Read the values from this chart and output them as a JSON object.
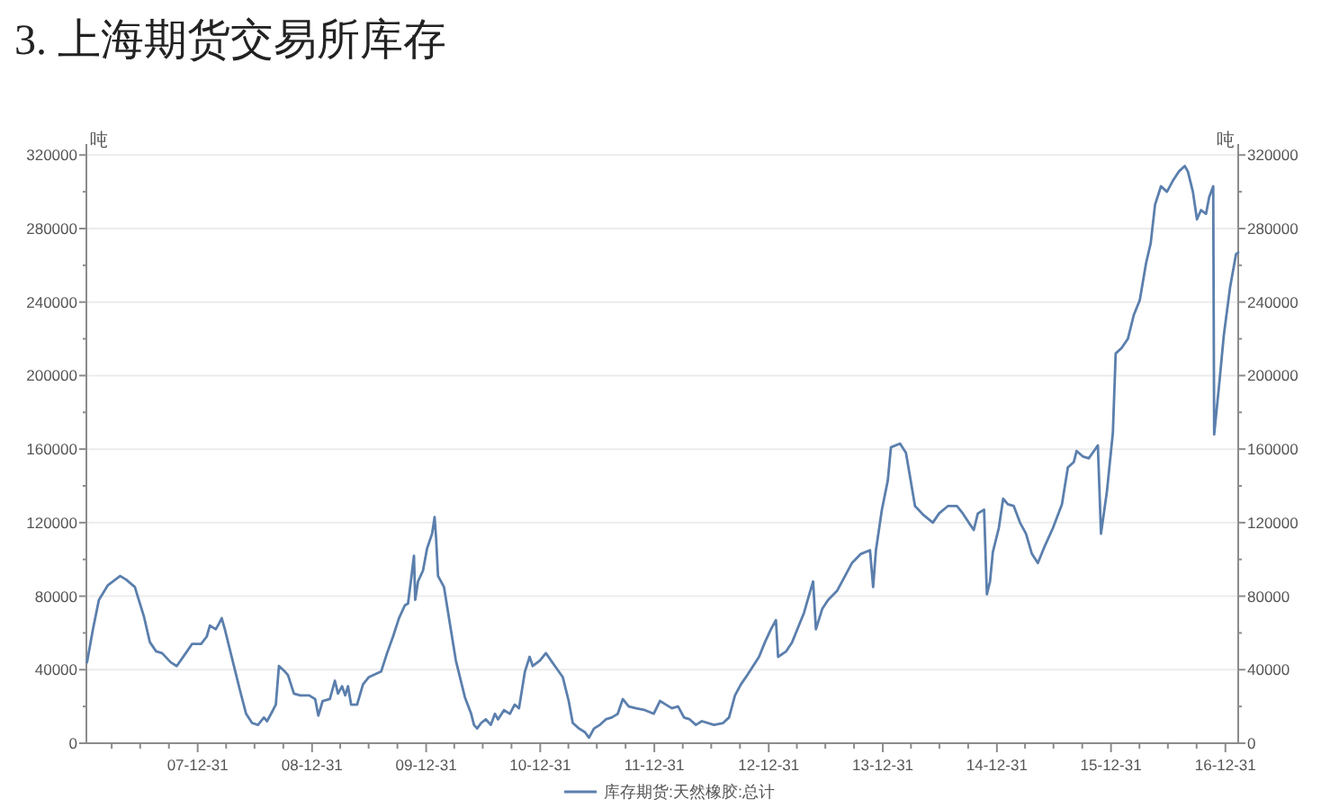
{
  "chart_data": {
    "type": "line",
    "title": "3. 上海期货交易所库存",
    "ylabel": "吨",
    "y2label": "吨",
    "xlim": [
      "2007-01-09",
      "2017-02-10"
    ],
    "xticks": [
      {
        "value": "2007-03-31",
        "label": null
      },
      {
        "value": "2007-06-30",
        "label": null
      },
      {
        "value": "2007-09-30",
        "label": null
      },
      {
        "value": "2007-12-31",
        "label": "07-12-31"
      },
      {
        "value": "2008-03-31",
        "label": null
      },
      {
        "value": "2008-06-30",
        "label": null
      },
      {
        "value": "2008-09-30",
        "label": null
      },
      {
        "value": "2008-12-31",
        "label": "08-12-31"
      },
      {
        "value": "2009-03-31",
        "label": null
      },
      {
        "value": "2009-06-30",
        "label": null
      },
      {
        "value": "2009-09-30",
        "label": null
      },
      {
        "value": "2009-12-31",
        "label": "09-12-31"
      },
      {
        "value": "2010-03-31",
        "label": null
      },
      {
        "value": "2010-06-30",
        "label": null
      },
      {
        "value": "2010-09-30",
        "label": null
      },
      {
        "value": "2010-12-31",
        "label": "10-12-31"
      },
      {
        "value": "2011-03-31",
        "label": null
      },
      {
        "value": "2011-06-30",
        "label": null
      },
      {
        "value": "2011-09-30",
        "label": null
      },
      {
        "value": "2011-12-31",
        "label": "11-12-31"
      },
      {
        "value": "2012-03-31",
        "label": null
      },
      {
        "value": "2012-06-30",
        "label": null
      },
      {
        "value": "2012-09-30",
        "label": null
      },
      {
        "value": "2012-12-31",
        "label": "12-12-31"
      },
      {
        "value": "2013-03-31",
        "label": null
      },
      {
        "value": "2013-06-30",
        "label": null
      },
      {
        "value": "2013-09-30",
        "label": null
      },
      {
        "value": "2013-12-31",
        "label": "13-12-31"
      },
      {
        "value": "2014-03-31",
        "label": null
      },
      {
        "value": "2014-06-30",
        "label": null
      },
      {
        "value": "2014-09-30",
        "label": null
      },
      {
        "value": "2014-12-31",
        "label": "14-12-31"
      },
      {
        "value": "2015-03-31",
        "label": null
      },
      {
        "value": "2015-06-30",
        "label": null
      },
      {
        "value": "2015-09-30",
        "label": null
      },
      {
        "value": "2015-12-31",
        "label": "15-12-31"
      },
      {
        "value": "2016-03-31",
        "label": null
      },
      {
        "value": "2016-06-30",
        "label": null
      },
      {
        "value": "2016-09-30",
        "label": null
      },
      {
        "value": "2016-12-31",
        "label": "16-12-31"
      }
    ],
    "ylim": [
      0,
      326000
    ],
    "yticks": [
      0,
      {
        "value": 20000,
        "label": null
      },
      40000,
      {
        "value": 60000,
        "label": null
      },
      80000,
      {
        "value": 100000,
        "label": null
      },
      120000,
      {
        "value": 140000,
        "label": null
      },
      160000,
      {
        "value": 180000,
        "label": null
      },
      200000,
      {
        "value": 220000,
        "label": null
      },
      240000,
      {
        "value": 260000,
        "label": null
      },
      280000,
      {
        "value": 300000,
        "label": null
      },
      320000
    ],
    "y2lim": [
      0,
      326000
    ],
    "y2ticks": [
      0,
      {
        "value": 20000,
        "label": null
      },
      40000,
      {
        "value": 60000,
        "label": null
      },
      80000,
      {
        "value": 100000,
        "label": null
      },
      120000,
      {
        "value": 140000,
        "label": null
      },
      160000,
      {
        "value": 180000,
        "label": null
      },
      200000,
      {
        "value": 220000,
        "label": null
      },
      240000,
      {
        "value": 260000,
        "label": null
      },
      280000,
      {
        "value": 300000,
        "label": null
      },
      320000
    ],
    "grid": "y",
    "legend": "bottom",
    "x": [
      "2007-01-11",
      "2007-01-30",
      "2007-02-18",
      "2007-03-19",
      "2007-04-27",
      "2007-05-16",
      "2007-06-13",
      "2007-07-12",
      "2007-07-31",
      "2007-08-20",
      "2007-09-08",
      "2007-10-06",
      "2007-10-25",
      "2007-11-23",
      "2007-12-13",
      "2008-01-11",
      "2008-01-29",
      "2008-02-08",
      "2008-02-27",
      "2008-03-08",
      "2008-03-17",
      "2008-03-27",
      "2008-04-25",
      "2008-05-14",
      "2008-06-03",
      "2008-06-22",
      "2008-07-11",
      "2008-07-30",
      "2008-08-09",
      "2008-08-28",
      "2008-09-06",
      "2008-09-16",
      "2008-10-05",
      "2008-10-15",
      "2008-11-03",
      "2008-11-23",
      "2008-12-22",
      "2009-01-10",
      "2009-01-20",
      "2009-02-03",
      "2009-02-26",
      "2009-03-14",
      "2009-03-24",
      "2009-04-06",
      "2009-04-16",
      "2009-04-25",
      "2009-05-05",
      "2009-05-24",
      "2009-06-12",
      "2009-07-01",
      "2009-08-09",
      "2009-08-28",
      "2009-09-16",
      "2009-10-05",
      "2009-10-24",
      "2009-11-03",
      "2009-11-12",
      "2009-11-22",
      "2009-11-26",
      "2009-12-05",
      "2009-12-21",
      "2010-01-03",
      "2010-01-19",
      "2010-01-27",
      "2010-02-01",
      "2010-02-07",
      "2010-02-26",
      "2010-03-17",
      "2010-04-05",
      "2010-05-04",
      "2010-05-24",
      "2010-06-02",
      "2010-06-12",
      "2010-06-25",
      "2010-07-10",
      "2010-07-26",
      "2010-08-08",
      "2010-08-18",
      "2010-09-06",
      "2010-09-25",
      "2010-10-10",
      "2010-10-24",
      "2010-11-12",
      "2010-11-27",
      "2010-12-07",
      "2010-12-30",
      "2011-01-18",
      "2011-02-16",
      "2011-03-13",
      "2011-04-01",
      "2011-04-14",
      "2011-05-04",
      "2011-05-23",
      "2011-06-05",
      "2011-06-21",
      "2011-07-10",
      "2011-07-29",
      "2011-08-17",
      "2011-09-05",
      "2011-09-21",
      "2011-10-10",
      "2011-11-02",
      "2011-12-01",
      "2011-12-29",
      "2012-01-18",
      "2012-02-06",
      "2012-02-25",
      "2012-03-16",
      "2012-04-04",
      "2012-04-22",
      "2012-05-12",
      "2012-05-31",
      "2012-07-09",
      "2012-08-07",
      "2012-08-26",
      "2012-09-14",
      "2012-10-03",
      "2012-10-23",
      "2012-11-11",
      "2012-11-30",
      "2012-12-19",
      "2013-01-07",
      "2013-01-23",
      "2013-01-30",
      "2013-02-25",
      "2013-03-16",
      "2013-04-04",
      "2013-04-23",
      "2013-05-08",
      "2013-05-22",
      "2013-05-31",
      "2013-06-20",
      "2013-07-09",
      "2013-08-07",
      "2013-08-26",
      "2013-09-23",
      "2013-10-22",
      "2013-11-20",
      "2013-11-30",
      "2013-12-09",
      "2013-12-28",
      "2014-01-16",
      "2014-01-26",
      "2014-02-24",
      "2014-03-15",
      "2014-03-30",
      "2014-04-13",
      "2014-05-11",
      "2014-06-09",
      "2014-06-29",
      "2014-07-27",
      "2014-08-25",
      "2014-09-13",
      "2014-10-02",
      "2014-10-18",
      "2014-10-31",
      "2014-11-20",
      "2014-11-29",
      "2014-12-09",
      "2014-12-18",
      "2015-01-06",
      "2015-01-20",
      "2015-02-04",
      "2015-02-23",
      "2015-03-15",
      "2015-04-03",
      "2015-04-22",
      "2015-05-11",
      "2015-05-30",
      "2015-06-28",
      "2015-07-27",
      "2015-08-15",
      "2015-09-03",
      "2015-09-12",
      "2015-10-02",
      "2015-10-21",
      "2015-11-19",
      "2015-11-29",
      "2015-12-18",
      "2016-01-06",
      "2016-01-15",
      "2016-02-03",
      "2016-02-23",
      "2016-03-13",
      "2016-04-01",
      "2016-04-21",
      "2016-05-06",
      "2016-05-20",
      "2016-06-08",
      "2016-06-27",
      "2016-07-16",
      "2016-08-04",
      "2016-08-23",
      "2016-09-02",
      "2016-09-18",
      "2016-10-01",
      "2016-10-14",
      "2016-10-30",
      "2016-11-09",
      "2016-11-22",
      "2016-11-25",
      "2016-12-11",
      "2016-12-26",
      "2017-01-15",
      "2017-02-03",
      "2017-02-10"
    ],
    "series": [
      {
        "name": "库存期货:天然橡胶:总计",
        "color": "#5b7fad",
        "values": [
          44000,
          62000,
          78000,
          86000,
          91000,
          89000,
          85000,
          69000,
          55000,
          50000,
          49000,
          44000,
          42000,
          49000,
          54000,
          54000,
          58000,
          64000,
          62000,
          65000,
          68000,
          62000,
          42000,
          29000,
          16000,
          11000,
          10000,
          14000,
          12000,
          18000,
          21000,
          42000,
          39000,
          37000,
          27000,
          26000,
          26000,
          24000,
          15000,
          23000,
          24000,
          34000,
          27000,
          31000,
          26000,
          31000,
          21000,
          21000,
          32000,
          36000,
          39000,
          49000,
          58000,
          68000,
          75000,
          76000,
          88000,
          102000,
          78000,
          88000,
          94000,
          106000,
          114000,
          123000,
          111000,
          91000,
          85000,
          65000,
          45000,
          25000,
          16000,
          10000,
          8000,
          11000,
          13000,
          10000,
          16000,
          13000,
          18000,
          16000,
          21000,
          19000,
          39000,
          47000,
          42000,
          45000,
          49000,
          42000,
          36000,
          23000,
          11000,
          8000,
          6000,
          3000,
          8000,
          10000,
          13000,
          14000,
          16000,
          24000,
          20000,
          19000,
          18000,
          16000,
          23000,
          21000,
          19000,
          20000,
          14000,
          13000,
          10000,
          12000,
          10000,
          11000,
          14000,
          26000,
          32000,
          37000,
          42000,
          47000,
          55000,
          62000,
          67000,
          47000,
          50000,
          55000,
          63000,
          71000,
          80000,
          88000,
          62000,
          73000,
          78000,
          83000,
          89000,
          98000,
          103000,
          105000,
          85000,
          105000,
          127000,
          143000,
          161000,
          163000,
          158000,
          143000,
          129000,
          124000,
          120000,
          125000,
          129000,
          129000,
          125000,
          120000,
          116000,
          125000,
          127000,
          81000,
          88000,
          104000,
          117000,
          133000,
          130000,
          129000,
          120000,
          114000,
          103000,
          98000,
          106000,
          117000,
          130000,
          150000,
          153000,
          159000,
          156000,
          155000,
          162000,
          114000,
          137000,
          169000,
          212000,
          215000,
          220000,
          233000,
          241000,
          261000,
          272000,
          293000,
          303000,
          300000,
          306000,
          311000,
          314000,
          311000,
          300000,
          285000,
          290000,
          288000,
          297000,
          303000,
          168000,
          195000,
          222000,
          248000,
          266000,
          267000
        ]
      }
    ]
  }
}
